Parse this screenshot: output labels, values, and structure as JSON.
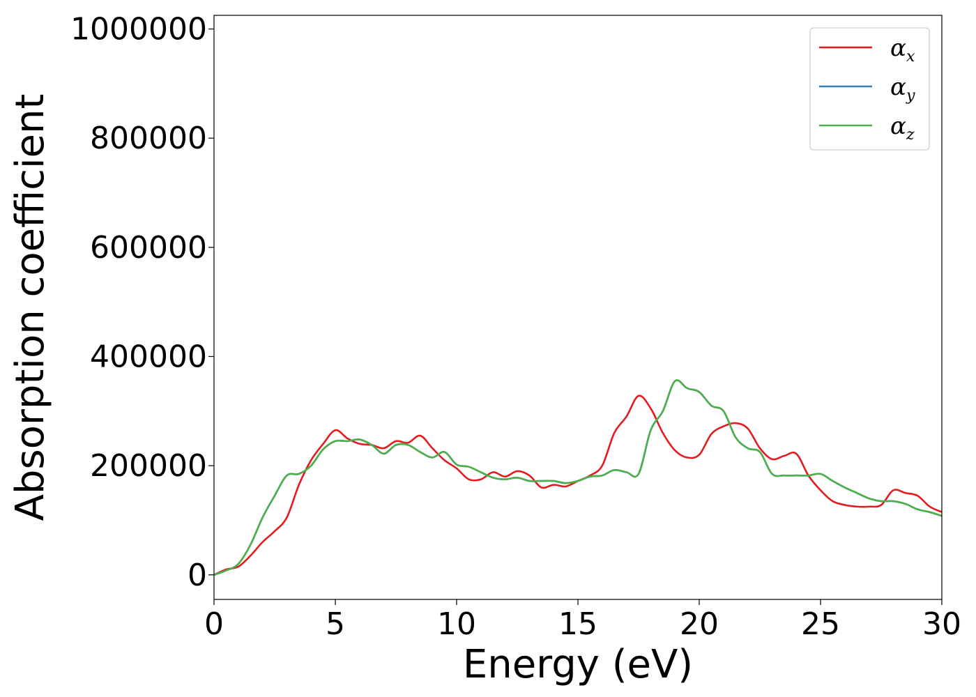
{
  "chart_data": {
    "type": "line",
    "xlabel": "Energy (eV)",
    "ylabel": "Absorption coefficient",
    "xlim": [
      0,
      30
    ],
    "ylim": [
      -45000,
      1025000
    ],
    "xticks": [
      0,
      5,
      10,
      15,
      20,
      25,
      30
    ],
    "yticks": [
      0,
      200000,
      400000,
      600000,
      800000,
      1000000
    ],
    "grid": false,
    "legend_position": "top-right",
    "series": [
      {
        "name": "α_x",
        "legend_base": "α",
        "legend_sub": "x",
        "color": "#e41a1c",
        "x": [
          0,
          0.5,
          1,
          1.5,
          2,
          2.5,
          3,
          3.5,
          4,
          4.5,
          5,
          5.5,
          6,
          6.5,
          7,
          7.5,
          8,
          8.5,
          9,
          9.5,
          10,
          10.5,
          11,
          11.5,
          12,
          12.5,
          13,
          13.5,
          14,
          14.5,
          15,
          15.5,
          16,
          16.5,
          17,
          17.5,
          18,
          18.5,
          19,
          19.5,
          20,
          20.5,
          21,
          21.5,
          22,
          22.5,
          23,
          23.5,
          24,
          24.5,
          25,
          25.5,
          26,
          26.5,
          27,
          27.5,
          28,
          28.5,
          29,
          29.5,
          30
        ],
        "y": [
          0,
          10000,
          15000,
          35000,
          60000,
          80000,
          105000,
          165000,
          210000,
          240000,
          265000,
          250000,
          240000,
          238000,
          232000,
          245000,
          242000,
          255000,
          232000,
          210000,
          195000,
          175000,
          175000,
          188000,
          180000,
          190000,
          182000,
          160000,
          165000,
          162000,
          172000,
          182000,
          200000,
          260000,
          290000,
          328000,
          305000,
          260000,
          228000,
          215000,
          220000,
          258000,
          272000,
          278000,
          268000,
          232000,
          212000,
          218000,
          222000,
          182000,
          155000,
          135000,
          128000,
          125000,
          125000,
          128000,
          155000,
          150000,
          145000,
          125000,
          115000
        ]
      },
      {
        "name": "α_y",
        "legend_base": "α",
        "legend_sub": "y",
        "color": "#377eb8",
        "x": [
          0,
          0.5,
          1,
          1.5,
          2,
          2.5,
          3,
          3.5,
          4,
          4.5,
          5,
          5.5,
          6,
          6.5,
          7,
          7.5,
          8,
          8.5,
          9,
          9.5,
          10,
          10.5,
          11,
          11.5,
          12,
          12.5,
          13,
          13.5,
          14,
          14.5,
          15,
          15.5,
          16,
          16.5,
          17,
          17.5,
          18,
          18.5,
          19,
          19.5,
          20,
          20.5,
          21,
          21.5,
          22,
          22.5,
          23,
          23.5,
          24,
          24.5,
          25,
          25.5,
          26,
          26.5,
          27,
          27.5,
          28,
          28.5,
          29,
          29.5,
          30
        ],
        "y": [
          0,
          8000,
          20000,
          55000,
          105000,
          145000,
          182000,
          185000,
          200000,
          230000,
          245000,
          245000,
          248000,
          238000,
          222000,
          238000,
          238000,
          225000,
          215000,
          225000,
          202000,
          198000,
          188000,
          178000,
          175000,
          178000,
          172000,
          172000,
          172000,
          168000,
          172000,
          180000,
          182000,
          192000,
          188000,
          185000,
          265000,
          300000,
          355000,
          342000,
          335000,
          310000,
          300000,
          252000,
          232000,
          225000,
          185000,
          182000,
          182000,
          182000,
          185000,
          172000,
          160000,
          150000,
          140000,
          135000,
          135000,
          130000,
          120000,
          115000,
          108000
        ]
      },
      {
        "name": "α_z",
        "legend_base": "α",
        "legend_sub": "z",
        "color": "#4daf4a",
        "x": [
          0,
          0.5,
          1,
          1.5,
          2,
          2.5,
          3,
          3.5,
          4,
          4.5,
          5,
          5.5,
          6,
          6.5,
          7,
          7.5,
          8,
          8.5,
          9,
          9.5,
          10,
          10.5,
          11,
          11.5,
          12,
          12.5,
          13,
          13.5,
          14,
          14.5,
          15,
          15.5,
          16,
          16.5,
          17,
          17.5,
          18,
          18.5,
          19,
          19.5,
          20,
          20.5,
          21,
          21.5,
          22,
          22.5,
          23,
          23.5,
          24,
          24.5,
          25,
          25.5,
          26,
          26.5,
          27,
          27.5,
          28,
          28.5,
          29,
          29.5,
          30
        ],
        "y": [
          0,
          8000,
          20000,
          55000,
          105000,
          145000,
          182000,
          185000,
          200000,
          230000,
          245000,
          245000,
          248000,
          238000,
          222000,
          238000,
          238000,
          225000,
          215000,
          225000,
          202000,
          198000,
          188000,
          178000,
          175000,
          178000,
          172000,
          172000,
          172000,
          168000,
          172000,
          180000,
          182000,
          192000,
          188000,
          185000,
          265000,
          300000,
          355000,
          342000,
          335000,
          310000,
          300000,
          252000,
          232000,
          225000,
          185000,
          182000,
          182000,
          182000,
          185000,
          172000,
          160000,
          150000,
          140000,
          135000,
          135000,
          130000,
          120000,
          115000,
          108000
        ]
      }
    ]
  }
}
